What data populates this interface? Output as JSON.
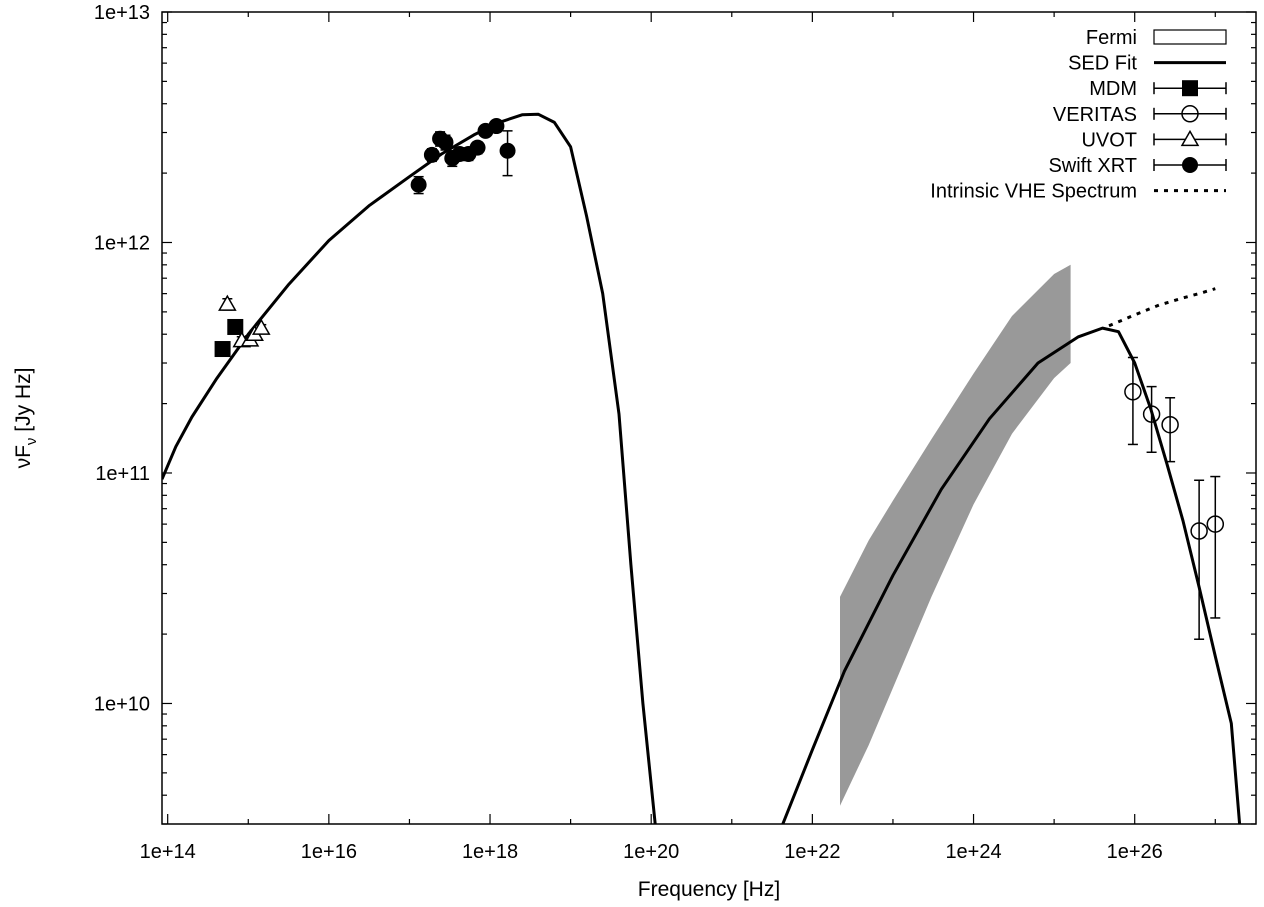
{
  "chart_data": {
    "type": "scatter",
    "xlabel": "Frequency [Hz]",
    "ylabel_main": "νF",
    "ylabel_sub": "ν",
    "ylabel_unit": " [Jy Hz]",
    "xscale": "log",
    "yscale": "log",
    "xlim": [
      85000000000000.0,
      3.2e+27
    ],
    "ylim": [
      3000000000.0,
      10000000000000.0
    ],
    "x_ticks": [
      {
        "value": 100000000000000.0,
        "label": "1e+14"
      },
      {
        "value": 1e+16,
        "label": "1e+16"
      },
      {
        "value": 1e+18,
        "label": "1e+18"
      },
      {
        "value": 1e+20,
        "label": "1e+20"
      },
      {
        "value": 1e+22,
        "label": "1e+22"
      },
      {
        "value": 1e+24,
        "label": "1e+24"
      },
      {
        "value": 1e+26,
        "label": "1e+26"
      }
    ],
    "y_ticks": [
      {
        "value": 10000000000.0,
        "label": "1e+10"
      },
      {
        "value": 100000000000.0,
        "label": "1e+11"
      },
      {
        "value": 1000000000000.0,
        "label": "1e+12"
      },
      {
        "value": 10000000000000.0,
        "label": "1e+13"
      }
    ],
    "grid": false,
    "legend_position": "top-right",
    "legend": [
      {
        "name": "Fermi",
        "symbol": "box"
      },
      {
        "name": "SED Fit",
        "symbol": "line"
      },
      {
        "name": "MDM",
        "symbol": "filled-square"
      },
      {
        "name": "VERITAS",
        "symbol": "open-circle"
      },
      {
        "name": "UVOT",
        "symbol": "open-triangle"
      },
      {
        "name": "Swift XRT",
        "symbol": "filled-circle"
      },
      {
        "name": "Intrinsic VHE Spectrum",
        "symbol": "dotted"
      }
    ],
    "sed_fit_synchrotron": [
      [
        85000000000000.0,
        94000000000.0
      ],
      [
        126000000000000.0,
        130000000000.0
      ],
      [
        200000000000000.0,
        175000000000.0
      ],
      [
        400000000000000.0,
        255000000000.0
      ],
      [
        1000000000000000.0,
        400000000000.0
      ],
      [
        3200000000000000.0,
        660000000000.0
      ],
      [
        1e+16,
        1020000000000.0
      ],
      [
        3.2e+16,
        1450000000000.0
      ],
      [
        1e+17,
        1930000000000.0
      ],
      [
        2.5e+17,
        2420000000000.0
      ],
      [
        6.3e+17,
        2930000000000.0
      ],
      [
        1.3e+18,
        3320000000000.0
      ],
      [
        2.5e+18,
        3580000000000.0
      ],
      [
        3.98e+18,
        3600000000000.0
      ],
      [
        6.3e+18,
        3320000000000.0
      ],
      [
        1e+19,
        2600000000000.0
      ],
      [
        1.58e+19,
        1300000000000.0
      ],
      [
        2.5e+19,
        600000000000.0
      ],
      [
        3.98e+19,
        180000000000.0
      ],
      [
        5.6e+19,
        40000000000.0
      ],
      [
        7.9e+19,
        10000000000.0
      ],
      [
        1.12e+20,
        3000000000.0
      ]
    ],
    "sed_fit_inverse_compton": [
      [
        4.3e+21,
        3000000000.0
      ],
      [
        1e+22,
        6300000000.0
      ],
      [
        2.5e+22,
        13800000000.0
      ],
      [
        1e+23,
        36000000000.0
      ],
      [
        3.98e+23,
        85000000000.0
      ],
      [
        1.58e+24,
        172000000000.0
      ],
      [
        6.3e+24,
        300000000000.0
      ],
      [
        2e+25,
        390000000000.0
      ],
      [
        3.98e+25,
        425000000000.0
      ],
      [
        6.3e+25,
        410000000000.0
      ],
      [
        1e+26,
        300000000000.0
      ],
      [
        1.58e+26,
        190000000000.0
      ],
      [
        2.5e+26,
        110000000000.0
      ],
      [
        3.98e+26,
        62000000000.0
      ],
      [
        6.3e+26,
        32000000000.0
      ],
      [
        1e+27,
        16000000000.0
      ],
      [
        1.58e+27,
        8200000000.0
      ],
      [
        2e+27,
        3000000000.0
      ]
    ],
    "intrinsic_vhe": [
      [
        4.8e+25,
        435000000000.0
      ],
      [
        1e+26,
        485000000000.0
      ],
      [
        2e+26,
        535000000000.0
      ],
      [
        3.98e+26,
        575000000000.0
      ],
      [
        6.3e+26,
        600000000000.0
      ],
      [
        1e+27,
        630000000000.0
      ]
    ],
    "fermi_band": {
      "x": [
        2.2e+22,
        5e+22,
        1e+23,
        3e+23,
        1e+24,
        3e+24,
        1e+25,
        1.6e+25
      ],
      "upper": [
        29000000000.0,
        51000000000.0,
        76000000000.0,
        140000000000.0,
        270000000000.0,
        480000000000.0,
        730000000000.0,
        800000000000.0
      ],
      "lower": [
        3600000000.0,
        6600000000.0,
        11700000000.0,
        29000000000.0,
        73000000000.0,
        148000000000.0,
        258000000000.0,
        300000000000.0
      ]
    },
    "series": [
      {
        "name": "MDM",
        "marker": "filled-square",
        "x": [
          480000000000000.0,
          690000000000000.0
        ],
        "y": [
          345000000000.0,
          430000000000.0
        ],
        "yerr_lo": [
          0,
          0
        ],
        "yerr_hi": [
          0,
          0
        ]
      },
      {
        "name": "UVOT",
        "marker": "open-triangle",
        "x": [
          550000000000000.0,
          830000000000000.0,
          1050000000000000.0,
          1200000000000000.0,
          1450000000000000.0
        ],
        "y": [
          540000000000.0,
          375000000000.0,
          378000000000.0,
          400000000000.0,
          425000000000.0
        ],
        "yerr_lo": [
          30000000000.0,
          15000000000.0,
          15000000000.0,
          15000000000.0,
          15000000000.0
        ],
        "yerr_hi": [
          30000000000.0,
          15000000000.0,
          15000000000.0,
          15000000000.0,
          15000000000.0
        ]
      },
      {
        "name": "Swift XRT",
        "marker": "filled-circle",
        "x": [
          1.3e+17,
          1.9e+17,
          2.4e+17,
          2.8e+17,
          3.4e+17,
          4.2e+17,
          5.4e+17,
          7e+17,
          8.8e+17,
          1.2e+18,
          1.65e+18
        ],
        "y": [
          1780000000000.0,
          2400000000000.0,
          2820000000000.0,
          2720000000000.0,
          2320000000000.0,
          2420000000000.0,
          2420000000000.0,
          2580000000000.0,
          3050000000000.0,
          3200000000000.0,
          2500000000000.0
        ],
        "yerr_lo": [
          150000000000.0,
          150000000000.0,
          200000000000.0,
          200000000000.0,
          180000000000.0,
          150000000000.0,
          150000000000.0,
          150000000000.0,
          150000000000.0,
          180000000000.0,
          550000000000.0
        ],
        "yerr_hi": [
          150000000000.0,
          150000000000.0,
          200000000000.0,
          200000000000.0,
          180000000000.0,
          150000000000.0,
          150000000000.0,
          150000000000.0,
          150000000000.0,
          180000000000.0,
          550000000000.0
        ]
      },
      {
        "name": "VERITAS",
        "marker": "open-circle",
        "x": [
          9.5e+25,
          1.62e+26,
          2.75e+26,
          6.3e+26,
          1e+27
        ],
        "y": [
          225000000000.0,
          180000000000.0,
          162000000000.0,
          56000000000.0,
          60000000000.0
        ],
        "yerr_lo": [
          92000000000.0,
          57000000000.0,
          50000000000.0,
          37000000000.0,
          36500000000.0
        ],
        "yerr_hi": [
          92000000000.0,
          57000000000.0,
          50000000000.0,
          37000000000.0,
          36500000000.0
        ]
      }
    ]
  }
}
